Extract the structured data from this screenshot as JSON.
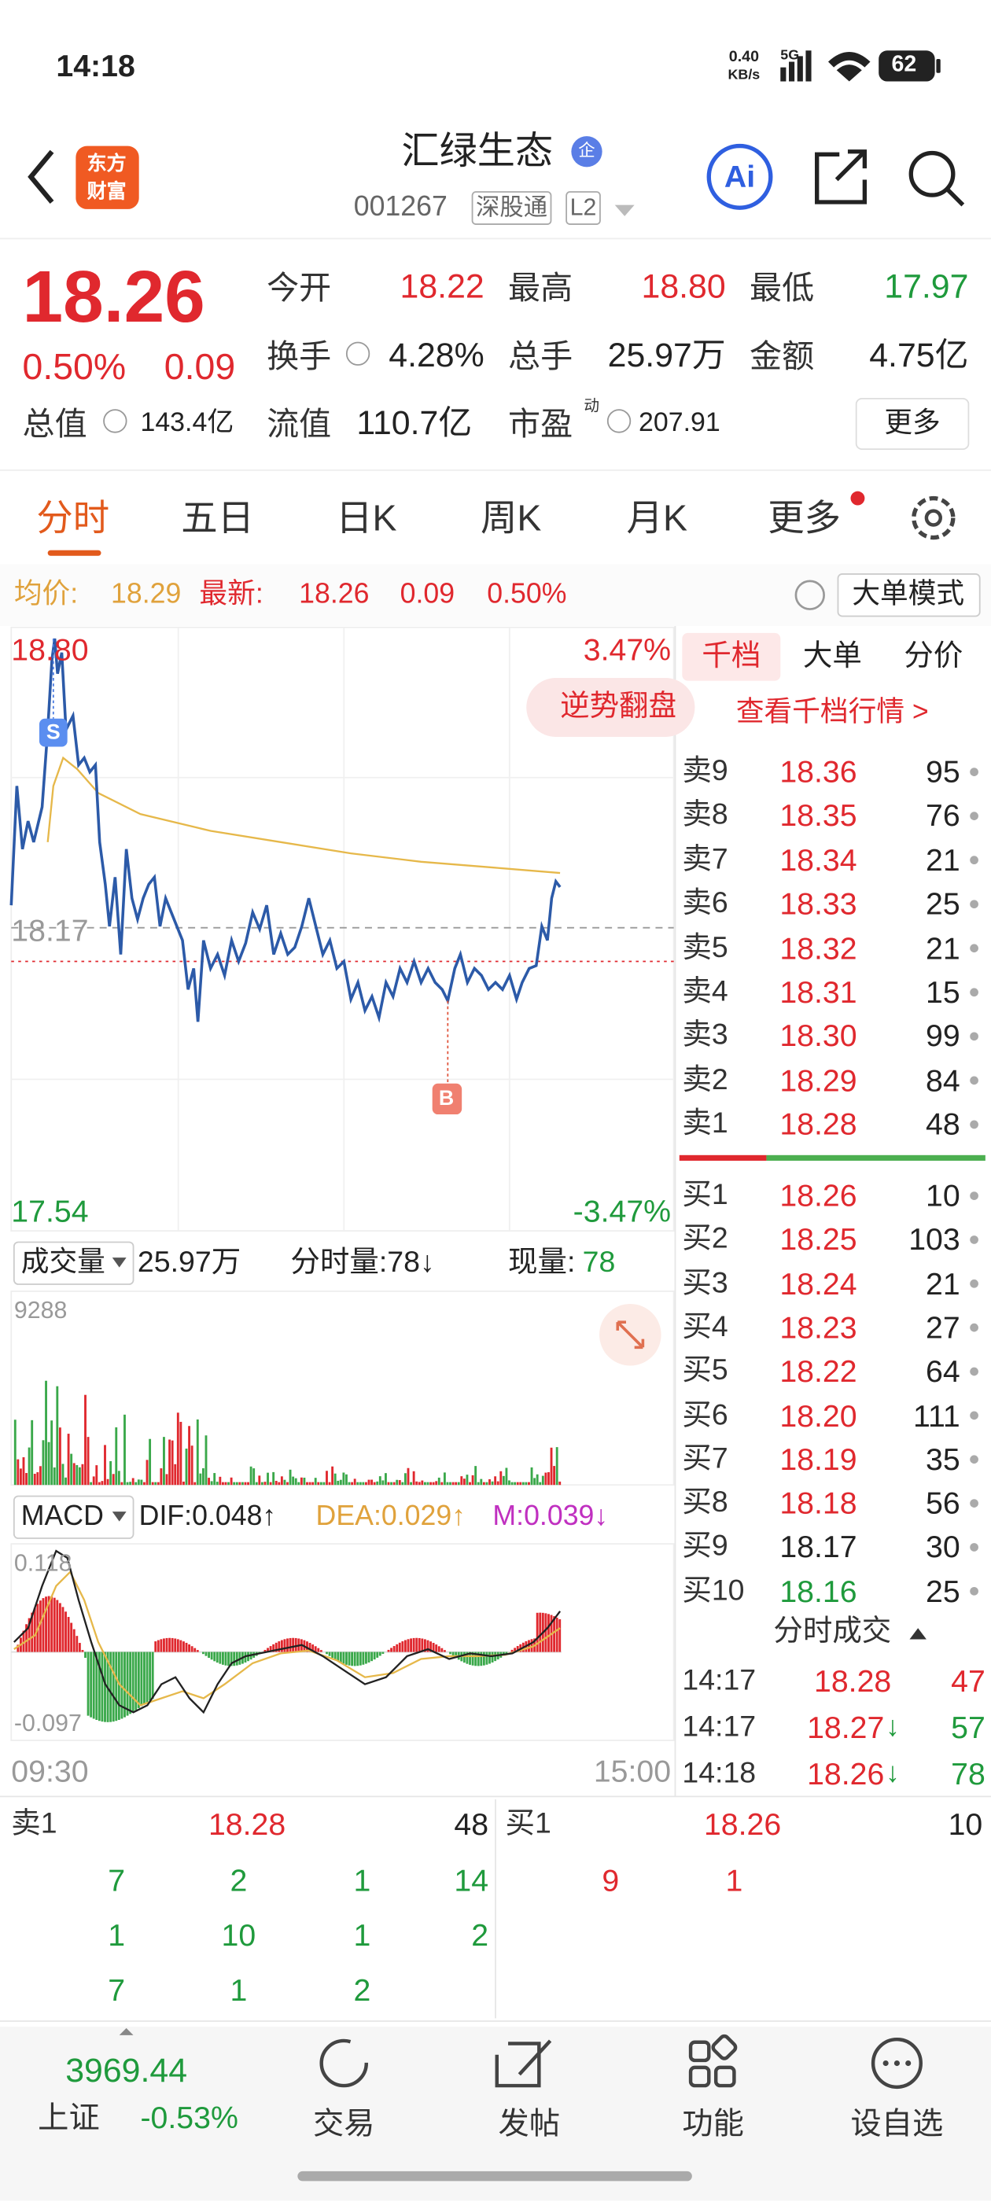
{
  "status_bar": {
    "time": "14:18",
    "net_speed": "0.40",
    "net_unit": "KB/s",
    "signal": "5G",
    "battery": "62"
  },
  "header": {
    "logo": [
      "东方",
      "财富"
    ],
    "title": "汇绿生态",
    "badge": "企",
    "code": "001267",
    "tags": [
      "深股通",
      "L2"
    ],
    "ai": "Ai"
  },
  "quote": {
    "price": "18.26",
    "change_pct": "0.50%",
    "change": "0.09",
    "fields": [
      {
        "label": "今开",
        "value": "18.22"
      },
      {
        "label": "最高",
        "value": "18.80"
      },
      {
        "label": "最低",
        "value": "17.97"
      },
      {
        "label": "换手",
        "value": "4.28%"
      },
      {
        "label": "总手",
        "value": "25.97万"
      },
      {
        "label": "金额",
        "value": "4.75亿"
      },
      {
        "label": "总值",
        "value": "143.4亿"
      },
      {
        "label": "流值",
        "value": "110.7亿"
      },
      {
        "label": "市盈",
        "sup": "动",
        "value": "207.91"
      }
    ],
    "more": "更多"
  },
  "tabs": [
    "分时",
    "五日",
    "日K",
    "周K",
    "月K",
    "更多"
  ],
  "info_bar": {
    "avg_label": "均价:",
    "avg": "18.29",
    "latest_label": "最新:",
    "latest": "18.26",
    "change": "0.09",
    "pct": "0.50%",
    "mode": "大单模式"
  },
  "chart": {
    "y_top": "18.80",
    "y_mid": "18.17",
    "y_bottom": "17.54",
    "pct_top": "3.47%",
    "pct_bottom": "-3.47%",
    "promo": "逆势翻盘",
    "marker_s": "S",
    "marker_b": "B",
    "time_start": "09:30",
    "time_end": "15:00"
  },
  "volume": {
    "label": "成交量",
    "total": "25.97万",
    "period": "分时量:78↓",
    "now_label": "现量:",
    "now": "78",
    "max": "9288"
  },
  "macd": {
    "label": "MACD",
    "dif": "DIF:0.048↑",
    "dea": "DEA:0.029↑",
    "m": "M:0.039↓",
    "top": "0.118",
    "bottom": "-0.097"
  },
  "order_book": {
    "tabs": [
      "千档",
      "大单",
      "分价"
    ],
    "link": "查看千档行情 >",
    "asks": [
      {
        "label": "卖9",
        "price": "18.36",
        "vol": "95"
      },
      {
        "label": "卖8",
        "price": "18.35",
        "vol": "76"
      },
      {
        "label": "卖7",
        "price": "18.34",
        "vol": "21"
      },
      {
        "label": "卖6",
        "price": "18.33",
        "vol": "25"
      },
      {
        "label": "卖5",
        "price": "18.32",
        "vol": "21"
      },
      {
        "label": "卖4",
        "price": "18.31",
        "vol": "15"
      },
      {
        "label": "卖3",
        "price": "18.30",
        "vol": "99"
      },
      {
        "label": "卖2",
        "price": "18.29",
        "vol": "84"
      },
      {
        "label": "卖1",
        "price": "18.28",
        "vol": "48"
      }
    ],
    "bids": [
      {
        "label": "买1",
        "price": "18.26",
        "vol": "10"
      },
      {
        "label": "买2",
        "price": "18.25",
        "vol": "103"
      },
      {
        "label": "买3",
        "price": "18.24",
        "vol": "21"
      },
      {
        "label": "买4",
        "price": "18.23",
        "vol": "27"
      },
      {
        "label": "买5",
        "price": "18.22",
        "vol": "64"
      },
      {
        "label": "买6",
        "price": "18.20",
        "vol": "111"
      },
      {
        "label": "买7",
        "price": "18.19",
        "vol": "35"
      },
      {
        "label": "买8",
        "price": "18.18",
        "vol": "56"
      },
      {
        "label": "买9",
        "price": "18.17",
        "vol": "30"
      },
      {
        "label": "买10",
        "price": "18.16",
        "vol": "25"
      }
    ],
    "trades_title": "分时成交",
    "trades": [
      {
        "time": "14:17",
        "price": "18.28",
        "vol": "47"
      },
      {
        "time": "14:17",
        "price": "18.27",
        "arrow": "↓",
        "vol": "57"
      },
      {
        "time": "14:18",
        "price": "18.26",
        "arrow": "↓",
        "vol": "78"
      }
    ]
  },
  "bottom_panel": {
    "sell": {
      "label": "卖1",
      "price": "18.28",
      "vol": "48"
    },
    "sell_grid": [
      [
        "7",
        "2",
        "1",
        "14"
      ],
      [
        "1",
        "10",
        "1",
        "2"
      ],
      [
        "7",
        "1",
        "2"
      ]
    ],
    "buy": {
      "label": "买1",
      "price": "18.26",
      "vol": "10"
    },
    "buy_grid": [
      [
        "9",
        "1"
      ]
    ]
  },
  "nav": {
    "index_value": "3969.44",
    "index_name": "上证",
    "index_change": "-0.53%",
    "items": [
      "交易",
      "发帖",
      "功能",
      "设自选"
    ]
  }
}
